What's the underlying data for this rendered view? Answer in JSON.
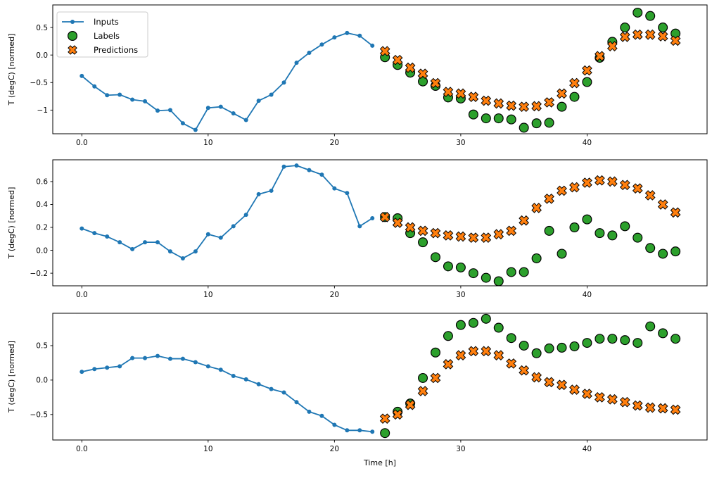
{
  "figure": {
    "xlabel": "Time [h]",
    "ylabel": "T (degC) [normed]",
    "legend": {
      "position": "upper left",
      "entries": [
        {
          "label": "Inputs",
          "marker": "line-dot"
        },
        {
          "label": "Labels",
          "marker": "circle"
        },
        {
          "label": "Predictions",
          "marker": "x-cross"
        }
      ]
    },
    "colors": {
      "inputs": "#1f77b4",
      "labels": "#2ca02c",
      "predictions": "#ff7f0e",
      "marker_edge": "#000000",
      "legend_border": "#cccccc",
      "axis": "#000000"
    }
  },
  "chart_data": [
    {
      "type": "line",
      "panel": "top",
      "ylabel": "T (degC) [normed]",
      "xlabel": "",
      "grid": false,
      "xlim": [
        -2.3,
        49.5
      ],
      "ylim": [
        -1.43,
        0.91
      ],
      "xticks": [
        0,
        10,
        20,
        30,
        40
      ],
      "yticks": [
        0.5,
        0.0,
        -0.5,
        -1.0
      ],
      "series": [
        {
          "name": "Inputs",
          "style": "line-dot",
          "x": [
            0,
            1,
            2,
            3,
            4,
            5,
            6,
            7,
            8,
            9,
            10,
            11,
            12,
            13,
            14,
            15,
            16,
            17,
            18,
            19,
            20,
            21,
            22,
            23
          ],
          "y": [
            -0.38,
            -0.57,
            -0.73,
            -0.72,
            -0.81,
            -0.84,
            -1.01,
            -1.0,
            -1.24,
            -1.36,
            -0.96,
            -0.94,
            -1.06,
            -1.18,
            -0.83,
            -0.72,
            -0.5,
            -0.14,
            0.04,
            0.19,
            0.32,
            0.4,
            0.35,
            0.17
          ]
        },
        {
          "name": "Labels",
          "style": "scatter-circle",
          "x": [
            24,
            25,
            26,
            27,
            28,
            29,
            30,
            31,
            32,
            33,
            34,
            35,
            36,
            37,
            38,
            39,
            40,
            41,
            42,
            43,
            44,
            45,
            46,
            47
          ],
          "y": [
            -0.04,
            -0.18,
            -0.32,
            -0.48,
            -0.56,
            -0.77,
            -0.79,
            -1.08,
            -1.15,
            -1.15,
            -1.17,
            -1.32,
            -1.24,
            -1.23,
            -0.94,
            -0.76,
            -0.49,
            -0.05,
            0.24,
            0.5,
            0.77,
            0.71,
            0.5,
            0.39
          ]
        },
        {
          "name": "Predictions",
          "style": "scatter-x",
          "x": [
            24,
            25,
            26,
            27,
            28,
            29,
            30,
            31,
            32,
            33,
            34,
            35,
            36,
            37,
            38,
            39,
            40,
            41,
            42,
            43,
            44,
            45,
            46,
            47
          ],
          "y": [
            0.07,
            -0.09,
            -0.23,
            -0.34,
            -0.51,
            -0.67,
            -0.7,
            -0.76,
            -0.83,
            -0.88,
            -0.92,
            -0.94,
            -0.93,
            -0.86,
            -0.7,
            -0.51,
            -0.28,
            -0.02,
            0.16,
            0.33,
            0.37,
            0.37,
            0.34,
            0.26
          ]
        }
      ]
    },
    {
      "type": "line",
      "panel": "middle",
      "ylabel": "T (degC) [normed]",
      "xlabel": "",
      "grid": false,
      "xlim": [
        -2.3,
        49.5
      ],
      "ylim": [
        -0.31,
        0.79
      ],
      "xticks": [
        0,
        10,
        20,
        30,
        40
      ],
      "yticks": [
        0.6,
        0.4,
        0.2,
        0.0,
        -0.2
      ],
      "series": [
        {
          "name": "Inputs",
          "style": "line-dot",
          "x": [
            0,
            1,
            2,
            3,
            4,
            5,
            6,
            7,
            8,
            9,
            10,
            11,
            12,
            13,
            14,
            15,
            16,
            17,
            18,
            19,
            20,
            21,
            22,
            23
          ],
          "y": [
            0.19,
            0.15,
            0.12,
            0.07,
            0.01,
            0.07,
            0.07,
            -0.01,
            -0.07,
            -0.01,
            0.14,
            0.11,
            0.21,
            0.31,
            0.49,
            0.52,
            0.73,
            0.74,
            0.7,
            0.66,
            0.54,
            0.5,
            0.21,
            0.28
          ]
        },
        {
          "name": "Labels",
          "style": "scatter-circle",
          "x": [
            24,
            25,
            26,
            27,
            28,
            29,
            30,
            31,
            32,
            33,
            34,
            35,
            36,
            37,
            38,
            39,
            40,
            41,
            42,
            43,
            44,
            45,
            46,
            47
          ],
          "y": [
            0.29,
            0.28,
            0.15,
            0.07,
            -0.06,
            -0.14,
            -0.15,
            -0.2,
            -0.24,
            -0.27,
            -0.19,
            -0.19,
            -0.07,
            0.17,
            -0.03,
            0.2,
            0.27,
            0.15,
            0.13,
            0.21,
            0.11,
            0.02,
            -0.03,
            -0.01
          ]
        },
        {
          "name": "Predictions",
          "style": "scatter-x",
          "x": [
            24,
            25,
            26,
            27,
            28,
            29,
            30,
            31,
            32,
            33,
            34,
            35,
            36,
            37,
            38,
            39,
            40,
            41,
            42,
            43,
            44,
            45,
            46,
            47
          ],
          "y": [
            0.29,
            0.24,
            0.2,
            0.17,
            0.15,
            0.13,
            0.12,
            0.11,
            0.11,
            0.14,
            0.17,
            0.26,
            0.37,
            0.45,
            0.52,
            0.55,
            0.59,
            0.61,
            0.6,
            0.57,
            0.54,
            0.48,
            0.4,
            0.33
          ]
        }
      ]
    },
    {
      "type": "line",
      "panel": "bottom",
      "ylabel": "T (degC) [normed]",
      "xlabel": "Time [h]",
      "grid": false,
      "xlim": [
        -2.3,
        49.5
      ],
      "ylim": [
        -0.87,
        0.97
      ],
      "xticks": [
        0,
        10,
        20,
        30,
        40
      ],
      "yticks": [
        0.5,
        0.0,
        -0.5
      ],
      "series": [
        {
          "name": "Inputs",
          "style": "line-dot",
          "x": [
            0,
            1,
            2,
            3,
            4,
            5,
            6,
            7,
            8,
            9,
            10,
            11,
            12,
            13,
            14,
            15,
            16,
            17,
            18,
            19,
            20,
            21,
            22,
            23
          ],
          "y": [
            0.12,
            0.16,
            0.18,
            0.2,
            0.32,
            0.32,
            0.35,
            0.31,
            0.31,
            0.26,
            0.2,
            0.15,
            0.06,
            0.01,
            -0.06,
            -0.13,
            -0.18,
            -0.32,
            -0.46,
            -0.52,
            -0.65,
            -0.73,
            -0.73,
            -0.75
          ]
        },
        {
          "name": "Labels",
          "style": "scatter-circle",
          "x": [
            24,
            25,
            26,
            27,
            28,
            29,
            30,
            31,
            32,
            33,
            34,
            35,
            36,
            37,
            38,
            39,
            40,
            41,
            42,
            43,
            44,
            45,
            46,
            47
          ],
          "y": [
            -0.77,
            -0.46,
            -0.34,
            0.03,
            0.4,
            0.64,
            0.8,
            0.83,
            0.89,
            0.76,
            0.61,
            0.5,
            0.39,
            0.46,
            0.47,
            0.49,
            0.54,
            0.6,
            0.6,
            0.58,
            0.54,
            0.78,
            0.68,
            0.6
          ]
        },
        {
          "name": "Predictions",
          "style": "scatter-x",
          "x": [
            24,
            25,
            26,
            27,
            28,
            29,
            30,
            31,
            32,
            33,
            34,
            35,
            36,
            37,
            38,
            39,
            40,
            41,
            42,
            43,
            44,
            45,
            46,
            47
          ],
          "y": [
            -0.56,
            -0.5,
            -0.36,
            -0.16,
            0.03,
            0.23,
            0.36,
            0.42,
            0.42,
            0.36,
            0.24,
            0.14,
            0.04,
            -0.03,
            -0.07,
            -0.14,
            -0.2,
            -0.25,
            -0.28,
            -0.32,
            -0.37,
            -0.4,
            -0.41,
            -0.43
          ]
        }
      ]
    }
  ]
}
